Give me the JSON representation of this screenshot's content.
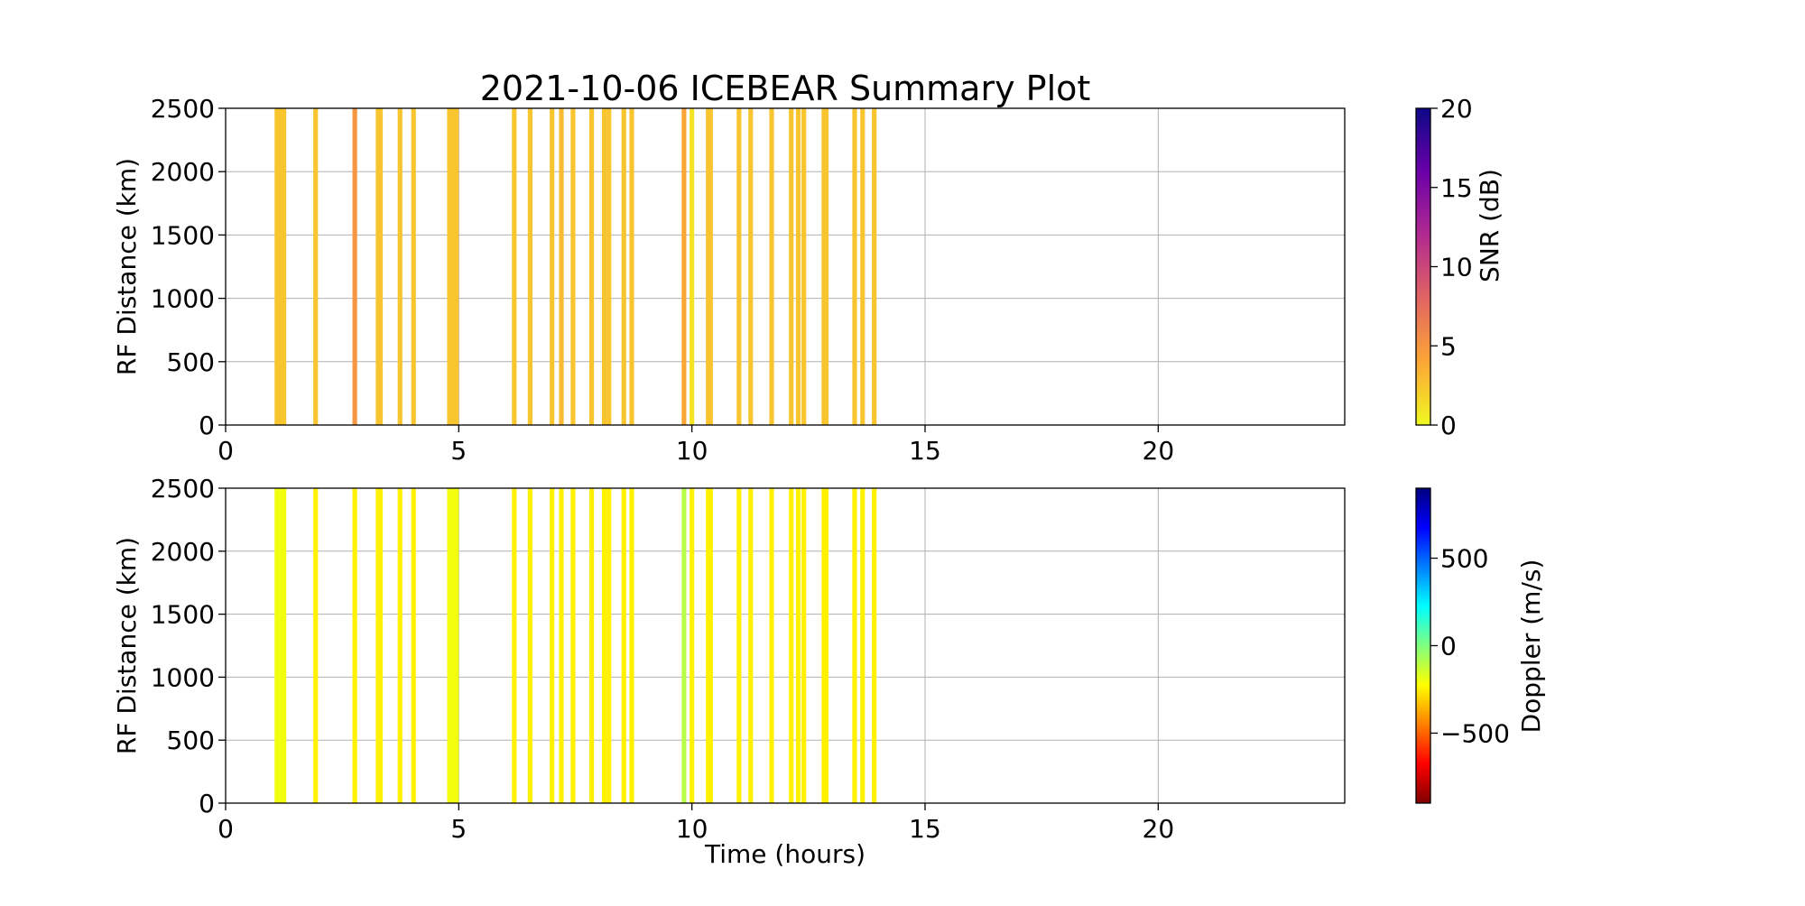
{
  "chart_data": [
    {
      "type": "heatmap",
      "title": "2021-10-06 ICEBEAR Summary Plot",
      "ylabel": "RF Distance (km)",
      "x": [
        1.1,
        1.15,
        1.2,
        1.25,
        1.93,
        2.77,
        3.27,
        3.32,
        3.74,
        4.03,
        4.8,
        4.85,
        4.9,
        4.95,
        6.19,
        6.53,
        7.0,
        7.2,
        7.45,
        7.85,
        8.12,
        8.22,
        8.54,
        8.71,
        9.83,
        10.0,
        10.35,
        10.4,
        11.01,
        11.26,
        11.71,
        12.13,
        12.28,
        12.4,
        12.83,
        12.88,
        13.49,
        13.66,
        13.91
      ],
      "values": [
        2.5,
        2.5,
        2.5,
        2.5,
        2.5,
        5,
        2.5,
        2.5,
        2.5,
        2.5,
        2.5,
        2.5,
        2.5,
        2.5,
        2.5,
        2.5,
        2.5,
        3,
        2.5,
        2.5,
        2.5,
        2.5,
        2.5,
        2.5,
        4,
        1,
        2.5,
        2.5,
        2.5,
        2.5,
        2.5,
        2.5,
        2.5,
        2.5,
        2.5,
        2.5,
        2.5,
        2.5,
        2.5
      ],
      "xlim": [
        0,
        24
      ],
      "ylim": [
        0,
        2500
      ],
      "xticks": [
        0,
        5,
        10,
        15,
        20
      ],
      "yticks": [
        0,
        500,
        1000,
        1500,
        2000,
        2500
      ],
      "grid": true,
      "colorbar": {
        "label": "SNR (dB)",
        "lim": [
          0,
          20
        ],
        "ticks": [
          0,
          5,
          10,
          15,
          20
        ],
        "colors": [
          "#f0f921",
          "#fca636",
          "#e16462",
          "#b12a90",
          "#6a00a8",
          "#0d0887"
        ]
      }
    },
    {
      "type": "heatmap",
      "ylabel": "RF Distance (km)",
      "xlabel": "Time (hours)",
      "x": [
        1.1,
        1.15,
        1.2,
        1.25,
        1.93,
        2.77,
        3.27,
        3.32,
        3.74,
        4.03,
        4.8,
        4.85,
        4.9,
        4.95,
        6.19,
        6.53,
        7.0,
        7.2,
        7.45,
        7.85,
        8.12,
        8.22,
        8.54,
        8.71,
        9.83,
        10.0,
        10.35,
        10.4,
        11.01,
        11.26,
        11.71,
        12.13,
        12.28,
        12.4,
        12.83,
        12.88,
        13.49,
        13.66,
        13.91
      ],
      "values": [
        -200,
        -200,
        -200,
        -200,
        -250,
        -250,
        -250,
        -250,
        -250,
        -250,
        -200,
        -200,
        -200,
        -200,
        -250,
        -250,
        -250,
        -250,
        -250,
        -250,
        -250,
        -250,
        -250,
        -250,
        -100,
        -250,
        -250,
        -250,
        -250,
        -250,
        -250,
        -250,
        -250,
        -250,
        -250,
        -250,
        -250,
        -250,
        -250
      ],
      "xlim": [
        0,
        24
      ],
      "ylim": [
        0,
        2500
      ],
      "xticks": [
        0,
        5,
        10,
        15,
        20
      ],
      "yticks": [
        0,
        500,
        1000,
        1500,
        2000,
        2500
      ],
      "grid": true,
      "colorbar": {
        "label": "Doppler (m/s)",
        "lim": [
          -900,
          900
        ],
        "ticks": [
          {
            "value": -500,
            "label": "−500"
          },
          0,
          500
        ],
        "colors": [
          "#7f0000",
          "#ff0000",
          "#ff7f00",
          "#ffff00",
          "#7fff7f",
          "#00ffff",
          "#007fff",
          "#0000ff",
          "#00007f"
        ]
      }
    }
  ]
}
